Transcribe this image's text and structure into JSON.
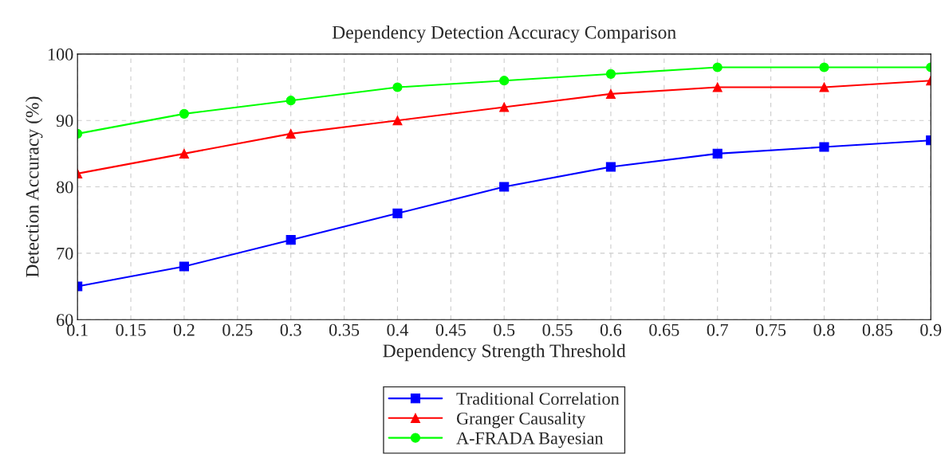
{
  "chart_data": {
    "type": "line",
    "title": "Dependency Detection Accuracy Comparison",
    "xlabel": "Dependency Strength Threshold",
    "ylabel": "Detection Accuracy (%)",
    "x": [
      0.1,
      0.2,
      0.3,
      0.4,
      0.5,
      0.6,
      0.7,
      0.8,
      0.9
    ],
    "series": [
      {
        "name": "Traditional Correlation",
        "color": "#0000ff",
        "marker": "square",
        "values": [
          65,
          68,
          72,
          76,
          80,
          83,
          85,
          86,
          87
        ]
      },
      {
        "name": "Granger Causality",
        "color": "#ff0000",
        "marker": "triangle",
        "values": [
          82,
          85,
          88,
          90,
          92,
          94,
          95,
          95,
          96
        ]
      },
      {
        "name": "A-FRADA Bayesian",
        "color": "#00ff00",
        "marker": "circle",
        "values": [
          88,
          91,
          93,
          95,
          96,
          97,
          98,
          98,
          98
        ]
      }
    ],
    "xlim": [
      0.1,
      0.9
    ],
    "xticks": [
      0.1,
      0.15,
      0.2,
      0.25,
      0.3,
      0.35,
      0.4,
      0.45,
      0.5,
      0.55,
      0.6,
      0.65,
      0.7,
      0.75,
      0.8,
      0.85,
      0.9
    ],
    "ylim": [
      60,
      100
    ],
    "yticks": [
      60,
      70,
      80,
      90,
      100
    ],
    "grid": true,
    "line_style": "solid",
    "legend": "bottom"
  }
}
